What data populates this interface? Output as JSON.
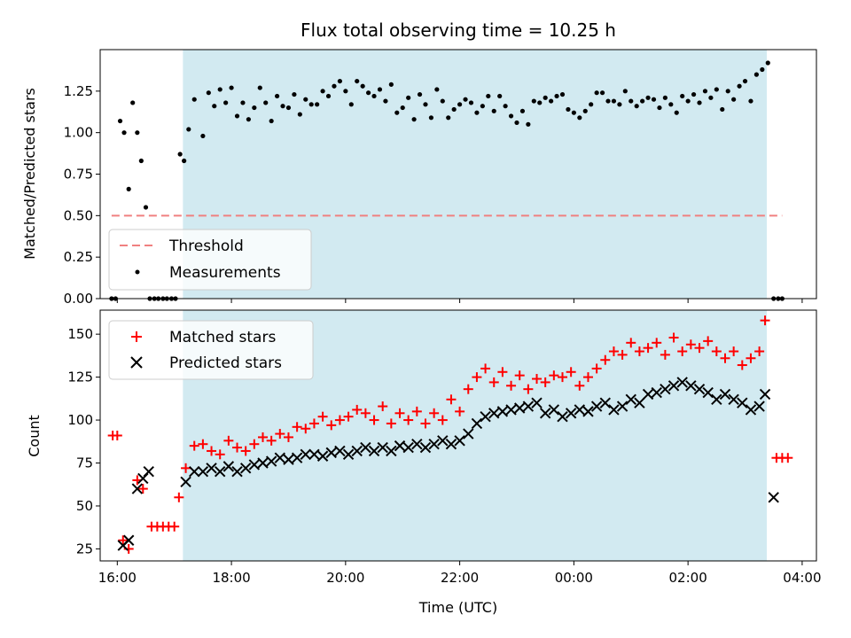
{
  "chart_data": [
    {
      "type": "scatter",
      "panel": "top",
      "title": "Flux total observing time = 10.25 h",
      "xlabel": "",
      "ylabel": "Matched/Predicted stars",
      "xlim": [
        15.7,
        28.25
      ],
      "ylim": [
        0,
        1.5
      ],
      "yticks": [
        0,
        0.25,
        0.5,
        0.75,
        1.0,
        1.25
      ],
      "ytick_labels": [
        "0.00",
        "0.25",
        "0.50",
        "0.75",
        "1.00",
        "1.25"
      ],
      "shaded_region": [
        17.15,
        27.38
      ],
      "threshold": {
        "name": "Threshold",
        "value": 0.5,
        "x_range": [
          15.9,
          27.65
        ],
        "color": "#f08080"
      },
      "legend": [
        "Threshold",
        "Measurements"
      ],
      "legend_position": "lower-left",
      "series": [
        {
          "name": "Measurements",
          "color": "#000000",
          "x": [
            15.9,
            15.97,
            16.05,
            16.12,
            16.2,
            16.27,
            16.35,
            16.42,
            16.5,
            16.57,
            16.65,
            16.72,
            16.8,
            16.87,
            16.95,
            17.02,
            17.1,
            17.17,
            17.25,
            17.35,
            17.5,
            17.6,
            17.7,
            17.8,
            17.9,
            18.0,
            18.1,
            18.2,
            18.3,
            18.4,
            18.5,
            18.6,
            18.7,
            18.8,
            18.9,
            19.0,
            19.1,
            19.2,
            19.3,
            19.4,
            19.5,
            19.6,
            19.7,
            19.8,
            19.9,
            20.0,
            20.1,
            20.2,
            20.3,
            20.4,
            20.5,
            20.6,
            20.7,
            20.8,
            20.9,
            21.0,
            21.1,
            21.2,
            21.3,
            21.4,
            21.5,
            21.6,
            21.7,
            21.8,
            21.9,
            22.0,
            22.1,
            22.2,
            22.3,
            22.4,
            22.5,
            22.6,
            22.7,
            22.8,
            22.9,
            23.0,
            23.1,
            23.2,
            23.3,
            23.4,
            23.5,
            23.6,
            23.7,
            23.8,
            23.9,
            24.0,
            24.1,
            24.2,
            24.3,
            24.4,
            24.5,
            24.6,
            24.7,
            24.8,
            24.9,
            25.0,
            25.1,
            25.2,
            25.3,
            25.4,
            25.5,
            25.6,
            25.7,
            25.8,
            25.9,
            26.0,
            26.1,
            26.2,
            26.3,
            26.4,
            26.5,
            26.6,
            26.7,
            26.8,
            26.9,
            27.0,
            27.1,
            27.2,
            27.3,
            27.4,
            27.5,
            27.58,
            27.65
          ],
          "y": [
            0.0,
            0.0,
            1.07,
            1.0,
            0.66,
            1.18,
            1.0,
            0.83,
            0.55,
            0.0,
            0.0,
            0.0,
            0.0,
            0.0,
            0.0,
            0.0,
            0.87,
            0.83,
            1.02,
            1.2,
            0.98,
            1.24,
            1.16,
            1.26,
            1.18,
            1.27,
            1.1,
            1.18,
            1.08,
            1.15,
            1.27,
            1.18,
            1.07,
            1.22,
            1.16,
            1.15,
            1.23,
            1.11,
            1.2,
            1.17,
            1.17,
            1.25,
            1.22,
            1.28,
            1.31,
            1.25,
            1.17,
            1.31,
            1.28,
            1.24,
            1.22,
            1.26,
            1.19,
            1.29,
            1.12,
            1.15,
            1.21,
            1.08,
            1.23,
            1.17,
            1.09,
            1.26,
            1.19,
            1.09,
            1.14,
            1.17,
            1.2,
            1.18,
            1.12,
            1.16,
            1.22,
            1.13,
            1.22,
            1.16,
            1.1,
            1.06,
            1.13,
            1.05,
            1.19,
            1.18,
            1.21,
            1.19,
            1.22,
            1.23,
            1.14,
            1.12,
            1.09,
            1.13,
            1.17,
            1.24,
            1.24,
            1.19,
            1.19,
            1.17,
            1.25,
            1.19,
            1.16,
            1.19,
            1.21,
            1.2,
            1.15,
            1.21,
            1.17,
            1.12,
            1.22,
            1.19,
            1.23,
            1.18,
            1.25,
            1.21,
            1.26,
            1.14,
            1.25,
            1.2,
            1.28,
            1.31,
            1.19,
            1.35,
            1.38,
            1.42,
            0.0,
            0.0,
            0.0
          ]
        }
      ]
    },
    {
      "type": "scatter",
      "panel": "bottom",
      "title": "",
      "xlabel": "Time (UTC)",
      "ylabel": "Count",
      "xlim": [
        15.7,
        28.25
      ],
      "ylim": [
        18,
        164
      ],
      "yticks": [
        25,
        50,
        75,
        100,
        125,
        150
      ],
      "ytick_labels": [
        "25",
        "50",
        "75",
        "100",
        "125",
        "150"
      ],
      "xticks": [
        16,
        18,
        20,
        22,
        24,
        26,
        28
      ],
      "xtick_labels": [
        "16:00",
        "18:00",
        "20:00",
        "22:00",
        "00:00",
        "02:00",
        "04:00"
      ],
      "shaded_region": [
        17.15,
        27.38
      ],
      "legend": [
        "Matched stars",
        "Predicted stars"
      ],
      "legend_position": "upper-left",
      "series": [
        {
          "name": "Matched stars",
          "marker": "plus",
          "color": "#ff0000",
          "x": [
            15.92,
            16.0,
            16.1,
            16.2,
            16.35,
            16.45,
            16.6,
            16.7,
            16.8,
            16.9,
            17.0,
            17.08,
            17.2,
            17.35,
            17.5,
            17.65,
            17.8,
            17.95,
            18.1,
            18.25,
            18.4,
            18.55,
            18.7,
            18.85,
            19.0,
            19.15,
            19.3,
            19.45,
            19.6,
            19.75,
            19.9,
            20.05,
            20.2,
            20.35,
            20.5,
            20.65,
            20.8,
            20.95,
            21.1,
            21.25,
            21.4,
            21.55,
            21.7,
            21.85,
            22.0,
            22.15,
            22.3,
            22.45,
            22.6,
            22.75,
            22.9,
            23.05,
            23.2,
            23.35,
            23.5,
            23.65,
            23.8,
            23.95,
            24.1,
            24.25,
            24.4,
            24.55,
            24.7,
            24.85,
            25.0,
            25.15,
            25.3,
            25.45,
            25.6,
            25.75,
            25.9,
            26.05,
            26.2,
            26.35,
            26.5,
            26.65,
            26.8,
            26.95,
            27.1,
            27.25,
            27.35,
            27.55,
            27.65,
            27.75
          ],
          "y": [
            91,
            91,
            30,
            25,
            65,
            60,
            38,
            38,
            38,
            38,
            38,
            55,
            72,
            85,
            86,
            82,
            80,
            88,
            84,
            82,
            86,
            90,
            88,
            92,
            90,
            96,
            95,
            98,
            102,
            97,
            100,
            102,
            106,
            104,
            100,
            108,
            98,
            104,
            100,
            105,
            98,
            104,
            100,
            112,
            105,
            118,
            125,
            130,
            122,
            128,
            120,
            126,
            118,
            124,
            122,
            126,
            125,
            128,
            120,
            125,
            130,
            135,
            140,
            138,
            145,
            140,
            142,
            145,
            138,
            148,
            140,
            144,
            142,
            146,
            140,
            136,
            140,
            132,
            136,
            140,
            158,
            78,
            78,
            78
          ]
        },
        {
          "name": "Predicted stars",
          "marker": "x",
          "color": "#000000",
          "x": [
            16.1,
            16.2,
            16.35,
            16.45,
            16.55,
            17.2,
            17.35,
            17.5,
            17.65,
            17.8,
            17.95,
            18.1,
            18.25,
            18.4,
            18.55,
            18.7,
            18.85,
            19.0,
            19.15,
            19.3,
            19.45,
            19.6,
            19.75,
            19.9,
            20.05,
            20.2,
            20.35,
            20.5,
            20.65,
            20.8,
            20.95,
            21.1,
            21.25,
            21.4,
            21.55,
            21.7,
            21.85,
            22.0,
            22.15,
            22.3,
            22.45,
            22.6,
            22.75,
            22.9,
            23.05,
            23.2,
            23.35,
            23.5,
            23.65,
            23.8,
            23.95,
            24.1,
            24.25,
            24.4,
            24.55,
            24.7,
            24.85,
            25.0,
            25.15,
            25.3,
            25.45,
            25.6,
            25.75,
            25.9,
            26.05,
            26.2,
            26.35,
            26.5,
            26.65,
            26.8,
            26.95,
            27.1,
            27.25,
            27.35,
            27.5
          ],
          "y": [
            27,
            30,
            60,
            66,
            70,
            64,
            70,
            70,
            72,
            70,
            73,
            70,
            72,
            74,
            75,
            76,
            78,
            77,
            78,
            80,
            80,
            79,
            81,
            82,
            80,
            82,
            84,
            82,
            84,
            82,
            85,
            84,
            86,
            84,
            86,
            88,
            86,
            88,
            92,
            98,
            102,
            104,
            105,
            106,
            107,
            108,
            110,
            104,
            106,
            102,
            104,
            106,
            105,
            108,
            110,
            106,
            108,
            112,
            110,
            115,
            116,
            118,
            120,
            122,
            120,
            118,
            116,
            112,
            115,
            112,
            110,
            106,
            108,
            115,
            55
          ]
        }
      ]
    }
  ]
}
